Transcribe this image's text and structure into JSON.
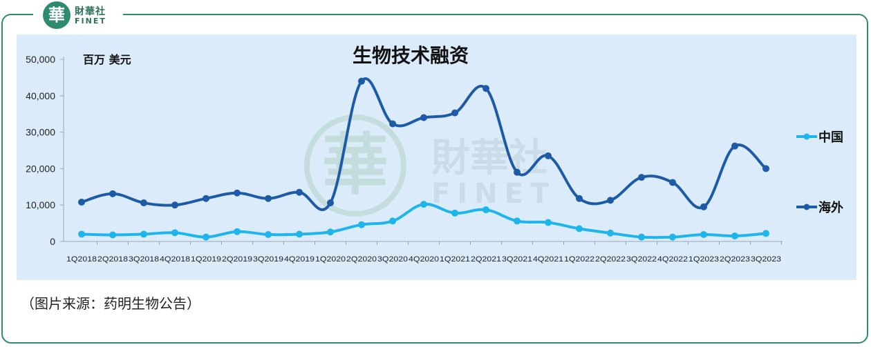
{
  "brand": {
    "badge_char": "華",
    "name_cn": "財華社",
    "name_en": "FINET"
  },
  "watermark": {
    "badge_char": "華",
    "name_cn": "財華社",
    "name_en": "FINET"
  },
  "caption": "（图片来源：药明生物公告）",
  "colors": {
    "china": "#1eb4ec",
    "overseas": "#1d5ba8",
    "plot_bg": "#dcebf9",
    "frame": "#2f8a6e"
  },
  "chart_data": {
    "type": "line",
    "title": "生物技术融资",
    "unit_label": "百万 美元",
    "categories": [
      "1Q2018",
      "2Q2018",
      "3Q2018",
      "4Q2018",
      "1Q2019",
      "2Q2019",
      "3Q2019",
      "4Q2019",
      "1Q2020",
      "2Q2020",
      "3Q2020",
      "4Q2020",
      "1Q2021",
      "2Q2021",
      "3Q2021",
      "4Q2021",
      "1Q2022",
      "2Q2022",
      "3Q2022",
      "4Q2022",
      "1Q2023",
      "2Q2023",
      "3Q2023"
    ],
    "y_ticks": [
      "0",
      "10,000",
      "20,000",
      "30,000",
      "40,000",
      "50,000"
    ],
    "ylim": [
      0,
      50000
    ],
    "legend_position": "right",
    "grid": false,
    "series": [
      {
        "name": "中国",
        "values": [
          2000,
          1800,
          2000,
          2400,
          1200,
          2700,
          1900,
          2000,
          2600,
          4600,
          5600,
          10200,
          7800,
          8700,
          5600,
          5200,
          3500,
          2300,
          1200,
          1200,
          1900,
          1500,
          2200
        ]
      },
      {
        "name": "海外",
        "values": [
          10800,
          13100,
          10600,
          10000,
          11800,
          13300,
          11800,
          13500,
          10600,
          44000,
          32300,
          34000,
          35300,
          42000,
          19000,
          23500,
          11800,
          11300,
          17600,
          16200,
          9500,
          26200,
          20000
        ]
      }
    ]
  }
}
